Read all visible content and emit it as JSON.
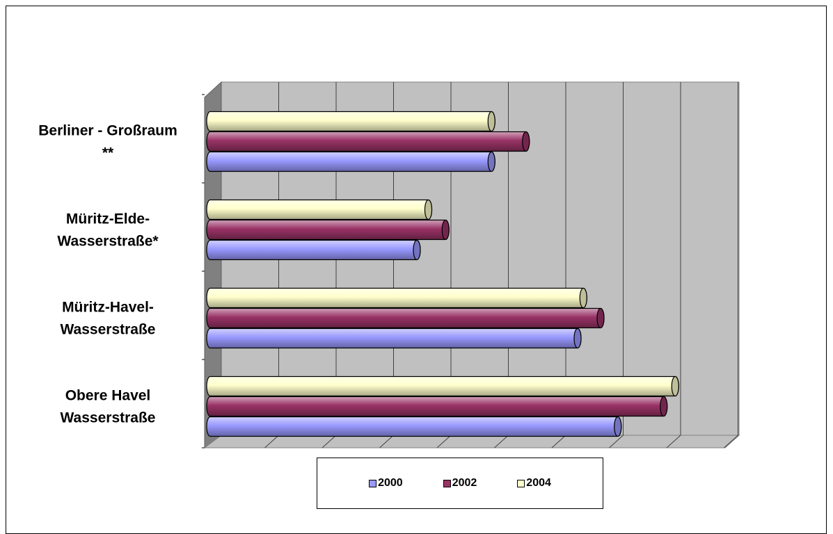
{
  "chart_data": {
    "type": "bar",
    "orientation": "horizontal",
    "style": "3d-cylinder",
    "categories": [
      "Berliner - Großraum **",
      "Müritz-Elde-Wasserstraße*",
      "Müritz-Havel-Wasserstraße",
      "Obere Havel Wasserstraße"
    ],
    "category_lines": [
      [
        "Berliner - Großraum",
        "**"
      ],
      [
        "Müritz-Elde-",
        "Wasserstraße*"
      ],
      [
        "Müritz-Havel-",
        "Wasserstraße"
      ],
      [
        "Obere Havel",
        "Wasserstraße"
      ]
    ],
    "series": [
      {
        "name": "2000",
        "values": [
          4.9,
          3.6,
          6.4,
          7.1
        ]
      },
      {
        "name": "2002",
        "values": [
          5.5,
          4.1,
          6.8,
          7.9
        ]
      },
      {
        "name": "2004",
        "values": [
          4.9,
          3.8,
          6.5,
          8.1
        ]
      }
    ],
    "colors": {
      "2000": "#9999ff",
      "2002": "#993366",
      "2004": "#ffffcc"
    },
    "xlim": [
      0,
      9
    ],
    "title": "",
    "xlabel": "",
    "ylabel": "",
    "grid": true,
    "legend_position": "bottom"
  }
}
